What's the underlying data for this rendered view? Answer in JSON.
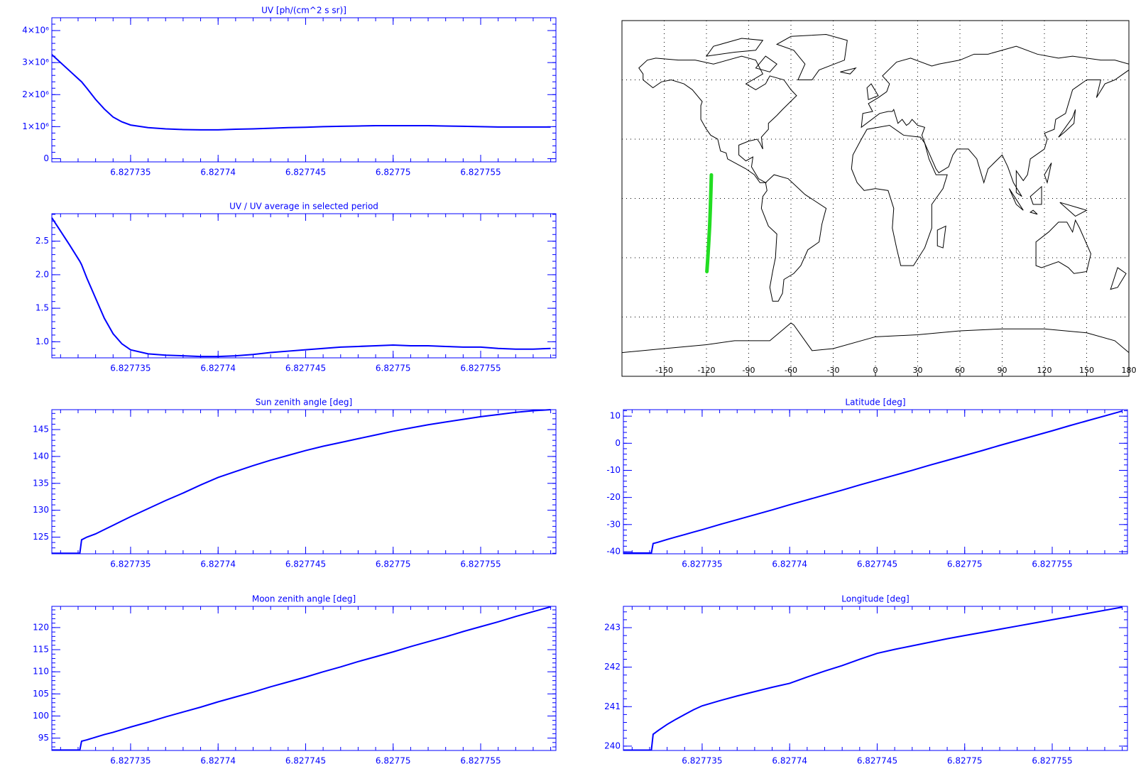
{
  "chart_data": [
    {
      "type": "line",
      "title": "UV [ph/(cm^2 s sr)]",
      "color": "#0000ff",
      "x": [
        6.8277305,
        6.8277315,
        6.8277321,
        6.8277322,
        6.8277325,
        6.827733,
        6.8277335,
        6.827734,
        6.8277345,
        6.827735,
        6.827736,
        6.827737,
        6.827738,
        6.827739,
        6.82774,
        6.827741,
        6.827742,
        6.827743,
        6.827744,
        6.827745,
        6.827746,
        6.827747,
        6.827748,
        6.827749,
        6.82775,
        6.827751,
        6.827752,
        6.827753,
        6.827754,
        6.827755,
        6.827756,
        6.827757,
        6.827758,
        6.827759
      ],
      "values": [
        3250000,
        2750000,
        2450000,
        2400000,
        2200000,
        1850000,
        1550000,
        1300000,
        1150000,
        1050000,
        970000,
        930000,
        910000,
        900000,
        900000,
        920000,
        930000,
        950000,
        970000,
        980000,
        1000000,
        1010000,
        1020000,
        1030000,
        1030000,
        1030000,
        1030000,
        1020000,
        1010000,
        1000000,
        990000,
        990000,
        990000,
        990000
      ],
      "xlim": [
        6.8277305,
        6.8277593
      ],
      "xticks": [
        6.827735,
        6.82774,
        6.827745,
        6.82775,
        6.827755
      ],
      "ylim": [
        -100000,
        4400000
      ],
      "yticks": [
        0,
        {
          "value": 1000000,
          "label": "1×10⁶"
        },
        {
          "value": 2000000,
          "label": "2×10⁶"
        },
        {
          "value": 3000000,
          "label": "3×10⁶"
        },
        {
          "value": 4000000,
          "label": "4×10⁶"
        }
      ]
    },
    {
      "type": "map",
      "color": "#22dd22",
      "x": [
        -119.7,
        -119.2,
        -118.4,
        -117.7,
        -117.2,
        -116.8,
        -116.5
      ],
      "values": [
        -37,
        -31.9,
        -22.7,
        -13.6,
        -4.5,
        4.6,
        11.9
      ],
      "xlim": [
        -180,
        180
      ],
      "ylim": [
        -90,
        90
      ],
      "xticks": [
        -150,
        -120,
        -90,
        -60,
        -30,
        0,
        30,
        60,
        90,
        120,
        150,
        180
      ],
      "grid": true
    },
    {
      "type": "line",
      "title": "UV / UV average in selected period",
      "color": "#0000ff",
      "x": [
        6.8277305,
        6.8277315,
        6.8277321,
        6.8277322,
        6.8277325,
        6.827733,
        6.8277335,
        6.827734,
        6.8277345,
        6.827735,
        6.827736,
        6.827737,
        6.827738,
        6.827739,
        6.82774,
        6.827741,
        6.827742,
        6.827743,
        6.827744,
        6.827745,
        6.827746,
        6.827747,
        6.827748,
        6.827749,
        6.82775,
        6.827751,
        6.827752,
        6.827753,
        6.827754,
        6.827755,
        6.827756,
        6.827757,
        6.827758,
        6.827759
      ],
      "values": [
        2.85,
        2.45,
        2.2,
        2.15,
        1.95,
        1.65,
        1.35,
        1.12,
        0.97,
        0.88,
        0.82,
        0.8,
        0.79,
        0.78,
        0.78,
        0.79,
        0.81,
        0.84,
        0.86,
        0.88,
        0.9,
        0.92,
        0.93,
        0.94,
        0.95,
        0.94,
        0.94,
        0.93,
        0.92,
        0.92,
        0.9,
        0.89,
        0.89,
        0.9
      ],
      "xlim": [
        6.8277305,
        6.8277593
      ],
      "xticks": [
        6.827735,
        6.82774,
        6.827745,
        6.82775,
        6.827755
      ],
      "ylim": [
        0.76,
        2.91
      ],
      "yticks": [
        {
          "value": 1,
          "label": "1.0"
        },
        1.5,
        {
          "value": 2,
          "label": "2.0"
        },
        2.5
      ]
    },
    {
      "type": "line",
      "title": "Sun zenith angle [deg]",
      "color": "#0000ff",
      "x": [
        6.8277305,
        6.8277315,
        6.8277321,
        6.8277322,
        6.8277325,
        6.827733,
        6.8277335,
        6.827734,
        6.8277345,
        6.827735,
        6.827736,
        6.827737,
        6.827738,
        6.827739,
        6.82774,
        6.827741,
        6.827742,
        6.827743,
        6.827744,
        6.827745,
        6.827746,
        6.827747,
        6.827748,
        6.827749,
        6.82775,
        6.827751,
        6.827752,
        6.827753,
        6.827754,
        6.827755,
        6.827756,
        6.827757,
        6.827758,
        6.827759
      ],
      "values": [
        122,
        122,
        122,
        124.5,
        125,
        125.6,
        126.4,
        127.2,
        128,
        128.8,
        130.3,
        131.8,
        133.2,
        134.7,
        136.1,
        137.2,
        138.3,
        139.3,
        140.2,
        141.1,
        141.9,
        142.6,
        143.3,
        144,
        144.7,
        145.3,
        145.9,
        146.4,
        146.9,
        147.4,
        147.8,
        148.2,
        148.5,
        148.7
      ],
      "xlim": [
        6.8277305,
        6.8277593
      ],
      "xticks": [
        6.827735,
        6.82774,
        6.827745,
        6.82775,
        6.827755
      ],
      "ylim": [
        121.9,
        148.7
      ],
      "yticks": [
        125,
        130,
        135,
        140,
        145
      ]
    },
    {
      "type": "line",
      "title": "Latitude [deg]",
      "color": "#0000ff",
      "x": [
        6.8277305,
        6.8277315,
        6.8277321,
        6.8277322,
        6.8277325,
        6.827733,
        6.8277335,
        6.827734,
        6.8277345,
        6.827735,
        6.827736,
        6.827737,
        6.827738,
        6.827739,
        6.82774,
        6.827741,
        6.827742,
        6.827743,
        6.827744,
        6.827745,
        6.827746,
        6.827747,
        6.827748,
        6.827749,
        6.82775,
        6.827751,
        6.827752,
        6.827753,
        6.827754,
        6.827755,
        6.827756,
        6.827757,
        6.827758,
        6.827759
      ],
      "values": [
        -40.5,
        -40.5,
        -40.5,
        -37,
        -36.5,
        -35.5,
        -34.6,
        -33.7,
        -32.8,
        -31.9,
        -30,
        -28.2,
        -26.4,
        -24.6,
        -22.7,
        -20.9,
        -19.1,
        -17.3,
        -15.4,
        -13.6,
        -11.8,
        -10,
        -8.1,
        -6.3,
        -4.5,
        -2.7,
        -0.8,
        1,
        2.8,
        4.6,
        6.5,
        8.3,
        10.1,
        11.9
      ],
      "xlim": [
        6.8277305,
        6.8277593
      ],
      "xticks": [
        6.827735,
        6.82774,
        6.827745,
        6.82775,
        6.827755
      ],
      "ylim": [
        -40.8,
        12.4
      ],
      "yticks": [
        -40,
        -30,
        -20,
        -10,
        0,
        10
      ]
    },
    {
      "type": "line",
      "title": "Moon zenith angle [deg]",
      "color": "#0000ff",
      "x": [
        6.8277305,
        6.8277315,
        6.8277321,
        6.8277322,
        6.8277325,
        6.827733,
        6.8277335,
        6.827734,
        6.8277345,
        6.827735,
        6.827736,
        6.827737,
        6.827738,
        6.827739,
        6.82774,
        6.827741,
        6.827742,
        6.827743,
        6.827744,
        6.827745,
        6.827746,
        6.827747,
        6.827748,
        6.827749,
        6.82775,
        6.827751,
        6.827752,
        6.827753,
        6.827754,
        6.827755,
        6.827756,
        6.827757,
        6.827758,
        6.827759
      ],
      "values": [
        92.3,
        92.3,
        92.3,
        94.3,
        94.6,
        95.2,
        95.8,
        96.3,
        96.9,
        97.5,
        98.6,
        99.8,
        100.9,
        102,
        103.2,
        104.3,
        105.4,
        106.6,
        107.7,
        108.8,
        110,
        111.1,
        112.3,
        113.4,
        114.5,
        115.7,
        116.8,
        117.9,
        119.1,
        120.2,
        121.3,
        122.5,
        123.6,
        124.7
      ],
      "xlim": [
        6.8277305,
        6.8277593
      ],
      "xticks": [
        6.827735,
        6.82774,
        6.827745,
        6.82775,
        6.827755
      ],
      "ylim": [
        92.2,
        124.8
      ],
      "yticks": [
        95,
        100,
        105,
        110,
        115,
        120
      ]
    },
    {
      "type": "line",
      "title": "Longitude [deg]",
      "color": "#0000ff",
      "x": [
        6.8277305,
        6.8277315,
        6.8277321,
        6.8277322,
        6.8277325,
        6.827733,
        6.8277335,
        6.827734,
        6.8277345,
        6.827735,
        6.827736,
        6.827737,
        6.827738,
        6.827739,
        6.82774,
        6.827741,
        6.827742,
        6.827743,
        6.827744,
        6.827745,
        6.827746,
        6.827747,
        6.827748,
        6.827749,
        6.82775,
        6.827751,
        6.827752,
        6.827753,
        6.827754,
        6.827755,
        6.827756,
        6.827757,
        6.827758,
        6.827759
      ],
      "values": [
        239.9,
        239.9,
        239.9,
        240.3,
        240.4,
        240.55,
        240.68,
        240.8,
        240.92,
        241.02,
        241.15,
        241.27,
        241.38,
        241.49,
        241.59,
        241.75,
        241.9,
        242.04,
        242.2,
        242.35,
        242.45,
        242.54,
        242.63,
        242.72,
        242.8,
        242.88,
        242.96,
        243.04,
        243.12,
        243.2,
        243.28,
        243.36,
        243.44,
        243.52
      ],
      "xlim": [
        6.8277305,
        6.8277593
      ],
      "xticks": [
        6.827735,
        6.82774,
        6.827745,
        6.82775,
        6.827755
      ],
      "ylim": [
        239.89,
        243.54
      ],
      "yticks": [
        240,
        241,
        242,
        243
      ]
    }
  ]
}
